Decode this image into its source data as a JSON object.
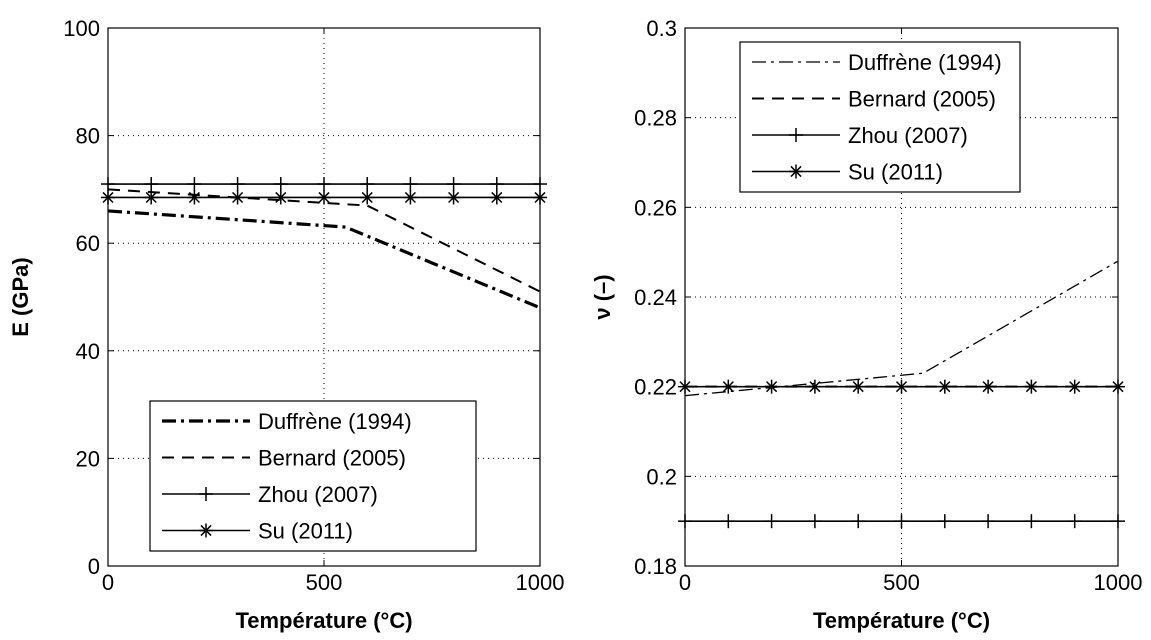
{
  "chart_data": [
    {
      "type": "line",
      "xlabel": "Température (°C)",
      "ylabel": "E (GPa)",
      "xlim": [
        0,
        1000
      ],
      "ylim": [
        0,
        100
      ],
      "xticks": [
        0,
        500,
        1000
      ],
      "yticks": [
        0,
        20,
        40,
        60,
        80,
        100
      ],
      "grid": true,
      "legend_placement": "bottom-right",
      "series": [
        {
          "name": "Duffrène (1994)",
          "style": "dashdot-thick",
          "marker": "none",
          "x": [
            0,
            550,
            1000
          ],
          "y": [
            66,
            63,
            48
          ]
        },
        {
          "name": "Bernard (2005)",
          "style": "dashed",
          "marker": "none",
          "x": [
            0,
            600,
            1000
          ],
          "y": [
            70,
            67,
            51
          ]
        },
        {
          "name": "Zhou (2007)",
          "style": "solid",
          "marker": "plus",
          "x": [
            0,
            100,
            200,
            300,
            400,
            500,
            600,
            700,
            800,
            900,
            1000
          ],
          "y": [
            71,
            71,
            71,
            71,
            71,
            71,
            71,
            71,
            71,
            71,
            71
          ]
        },
        {
          "name": "Su (2011)",
          "style": "solid",
          "marker": "star",
          "x": [
            0,
            100,
            200,
            300,
            400,
            500,
            600,
            700,
            800,
            900,
            1000
          ],
          "y": [
            68.5,
            68.5,
            68.5,
            68.5,
            68.5,
            68.5,
            68.5,
            68.5,
            68.5,
            68.5,
            68.5
          ]
        }
      ]
    },
    {
      "type": "line",
      "xlabel": "Température (°C)",
      "ylabel": "ν (–)",
      "xlim": [
        0,
        1000
      ],
      "ylim": [
        0.18,
        0.3
      ],
      "xticks": [
        0,
        500,
        1000
      ],
      "yticks": [
        0.18,
        0.2,
        0.22,
        0.24,
        0.26,
        0.28,
        0.3
      ],
      "ytick_labels": [
        "0.18",
        "0.2",
        "0.22",
        "0.24",
        "0.26",
        "0.28",
        "0.3"
      ],
      "grid": true,
      "legend_placement": "top-left",
      "series": [
        {
          "name": "Duffrène (1994)",
          "style": "dashdot",
          "marker": "none",
          "x": [
            0,
            550,
            1000
          ],
          "y": [
            0.218,
            0.223,
            0.248
          ]
        },
        {
          "name": "Bernard (2005)",
          "style": "dashed",
          "marker": "none",
          "x": [
            0,
            1000
          ],
          "y": [
            0.22,
            0.22
          ]
        },
        {
          "name": "Zhou (2007)",
          "style": "solid",
          "marker": "plus",
          "x": [
            0,
            100,
            200,
            300,
            400,
            500,
            600,
            700,
            800,
            900,
            1000
          ],
          "y": [
            0.19,
            0.19,
            0.19,
            0.19,
            0.19,
            0.19,
            0.19,
            0.19,
            0.19,
            0.19,
            0.19
          ]
        },
        {
          "name": "Su (2011)",
          "style": "solid",
          "marker": "star",
          "x": [
            0,
            100,
            200,
            300,
            400,
            500,
            600,
            700,
            800,
            900,
            1000
          ],
          "y": [
            0.22,
            0.22,
            0.22,
            0.22,
            0.22,
            0.22,
            0.22,
            0.22,
            0.22,
            0.22,
            0.22
          ]
        }
      ]
    }
  ]
}
